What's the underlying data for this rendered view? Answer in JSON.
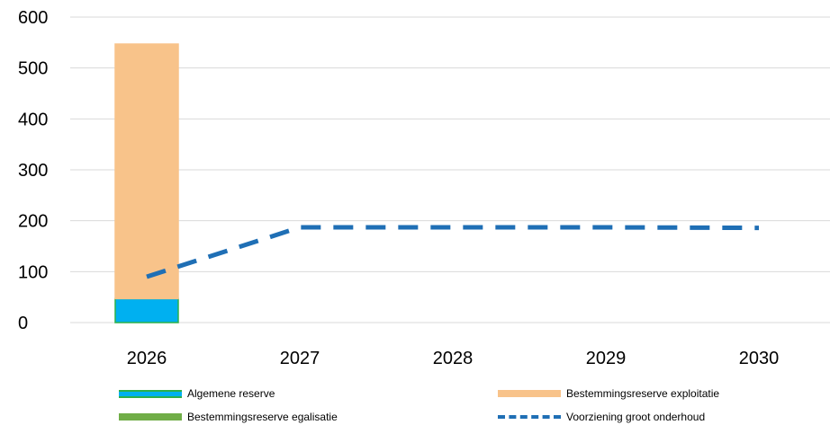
{
  "chart_data": {
    "type": "bar",
    "categories": [
      "2026",
      "2027",
      "2028",
      "2029",
      "2030"
    ],
    "ylim": [
      0,
      600
    ],
    "yticks": [
      0,
      100,
      200,
      300,
      400,
      500,
      600
    ],
    "stacked_series": [
      {
        "name": "Algemene reserve",
        "color": "#00B0F0",
        "border": "#2CB04A",
        "values": [
          47,
          0,
          0,
          0,
          0
        ]
      },
      {
        "name": "Bestemmingsreserve egalisatie",
        "color": "#70AD47",
        "border": "#70AD47",
        "values": [
          0,
          0,
          0,
          0,
          0
        ]
      },
      {
        "name": "Bestemmingsreserve exploitatie",
        "color": "#F8C38A",
        "border": "#F8C38A",
        "values": [
          500,
          0,
          0,
          0,
          0
        ]
      }
    ],
    "line_series": [
      {
        "name": "Voorziening groot onderhoud",
        "color": "#1F6FB5",
        "style": "dashed",
        "values": [
          90,
          187,
          187,
          187,
          186
        ]
      }
    ],
    "grid": true
  },
  "legend": {
    "items": [
      {
        "key": "algemene",
        "label": "Algemene reserve",
        "kind": "bar",
        "color": "#00B0F0"
      },
      {
        "key": "exploitatie",
        "label": "Bestemmingsreserve exploitatie",
        "kind": "bar",
        "color": "#F8C38A"
      },
      {
        "key": "egalisatie",
        "label": "Bestemmingsreserve egalisatie",
        "kind": "bar",
        "color": "#70AD47"
      },
      {
        "key": "voorziening",
        "label": "Voorziening groot onderhoud",
        "kind": "line",
        "color": "#1F6FB5"
      }
    ]
  }
}
